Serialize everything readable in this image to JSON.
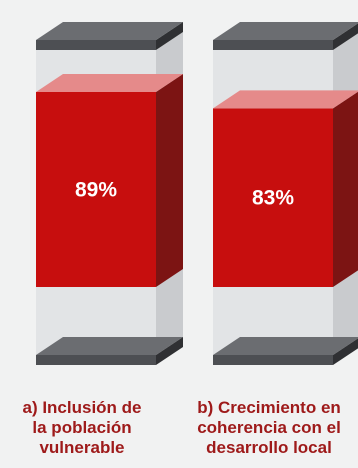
{
  "chart_data": {
    "type": "bar",
    "style": "3d-glass-columns",
    "categories": [
      [
        "a) Inclusión de",
        "la población",
        "vulnerable"
      ],
      [
        "b) Crecimiento en",
        "coherencia con el",
        "desarrollo local"
      ]
    ],
    "values": [
      89,
      83
    ],
    "value_labels": [
      "89%",
      "83%"
    ],
    "ylim": [
      0,
      100
    ],
    "grid": false,
    "legend": "none",
    "colors": {
      "fill_front": "#c70e0e",
      "fill_side": "#7c1413",
      "fill_top": "#e58a8a",
      "cap_dark": "#4d4f53",
      "glass_front": "#e2e4e6",
      "glass_side": "#c9cbce",
      "caption": "#9e1a1a",
      "background": "#f1f2f2"
    }
  }
}
